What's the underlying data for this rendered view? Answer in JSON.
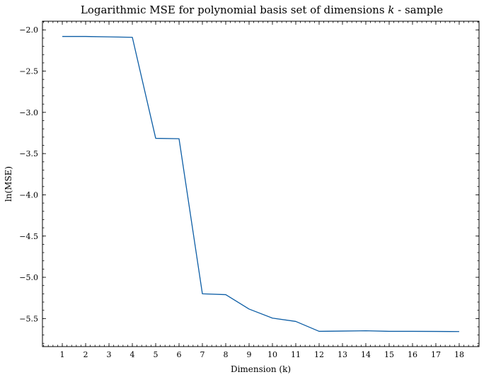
{
  "chart_data": {
    "type": "line",
    "title": "Logarithmic MSE for polynomial basis set of dimensions k - sample",
    "title_parts": {
      "prefix": "Logarithmic MSE for polynomial basis set of dimensions ",
      "variable": "k",
      "suffix": " - sample"
    },
    "xlabel": "Dimension (k)",
    "ylabel": "ln(MSE)",
    "x": [
      1,
      2,
      3,
      4,
      5,
      6,
      7,
      8,
      9,
      10,
      11,
      12,
      13,
      14,
      15,
      16,
      17,
      18
    ],
    "series": [
      {
        "values": [
          -2.08,
          -2.08,
          -2.085,
          -2.09,
          -3.315,
          -3.32,
          -5.2,
          -5.21,
          -5.385,
          -5.495,
          -5.535,
          -5.655,
          -5.652,
          -5.648,
          -5.655,
          -5.655,
          -5.656,
          -5.658
        ],
        "color": "#0c5da5"
      }
    ],
    "xlim": [
      0.15,
      18.85
    ],
    "ylim": [
      -5.84,
      -1.895
    ],
    "xticks": [
      1,
      2,
      3,
      4,
      5,
      6,
      7,
      8,
      9,
      10,
      11,
      12,
      13,
      14,
      15,
      16,
      17,
      18
    ],
    "xtick_labels": [
      "1",
      "2",
      "3",
      "4",
      "5",
      "6",
      "7",
      "8",
      "9",
      "10",
      "11",
      "12",
      "13",
      "14",
      "15",
      "16",
      "17",
      "18"
    ],
    "yticks": [
      -2.0,
      -2.5,
      -3.0,
      -3.5,
      -4.0,
      -4.5,
      -5.0,
      -5.5
    ],
    "ytick_labels": [
      "−2.0",
      "−2.5",
      "−3.0",
      "−3.5",
      "−4.0",
      "−4.5",
      "−5.0",
      "−5.5"
    ],
    "y_minor_step": 0.1,
    "x_minor_step": 0.2,
    "grid": false,
    "legend": "none"
  }
}
